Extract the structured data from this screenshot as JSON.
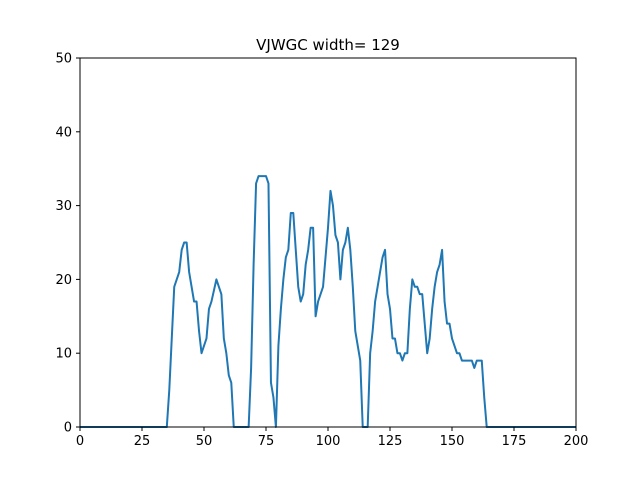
{
  "chart_data": {
    "type": "line",
    "title": "VJWGC width= 129",
    "xlabel": "",
    "ylabel": "",
    "xlim": [
      0,
      200
    ],
    "ylim": [
      0,
      50
    ],
    "xticks": [
      0,
      25,
      50,
      75,
      100,
      125,
      150,
      175,
      200
    ],
    "yticks": [
      0,
      10,
      20,
      30,
      40,
      50
    ],
    "grid": false,
    "color": "#1f77b4",
    "series": [
      {
        "x": [
          0,
          35,
          36,
          37,
          38,
          40,
          41,
          42,
          43,
          44,
          45,
          46,
          47,
          48,
          49,
          51,
          52,
          53,
          55,
          56,
          57,
          58,
          59,
          60,
          61,
          62,
          63,
          64,
          65,
          66,
          67,
          68,
          69,
          70,
          71,
          72,
          73,
          74,
          75,
          76,
          77,
          78,
          79,
          80,
          81,
          82,
          83,
          84,
          85,
          86,
          87,
          88,
          89,
          90,
          91,
          92,
          93,
          94,
          95,
          96,
          97,
          98,
          99,
          100,
          101,
          102,
          103,
          104,
          105,
          106,
          107,
          108,
          109,
          110,
          111,
          112,
          113,
          114,
          115,
          116,
          117,
          118,
          119,
          120,
          121,
          122,
          123,
          124,
          125,
          126,
          127,
          128,
          129,
          130,
          131,
          132,
          133,
          134,
          135,
          136,
          137,
          138,
          139,
          140,
          141,
          142,
          143,
          144,
          145,
          146,
          147,
          148,
          149,
          150,
          151,
          152,
          153,
          154,
          155,
          156,
          157,
          158,
          159,
          160,
          161,
          162,
          163,
          164,
          165,
          200
        ],
        "y": [
          0,
          0,
          5,
          12,
          19,
          21,
          24,
          25,
          25,
          21,
          19,
          17,
          17,
          13,
          10,
          12,
          16,
          17,
          20,
          19,
          18,
          12,
          10,
          7,
          6,
          0,
          0,
          0,
          0,
          0,
          0,
          0,
          8,
          22,
          33,
          34,
          34,
          34,
          34,
          33,
          6,
          4,
          0,
          11,
          16,
          20,
          23,
          24,
          29,
          29,
          24,
          19,
          17,
          18,
          22,
          24,
          27,
          27,
          15,
          17,
          18,
          19,
          23,
          27,
          32,
          30,
          26,
          25,
          20,
          24,
          25,
          27,
          24,
          19,
          13,
          11,
          9,
          0,
          0,
          0,
          10,
          13,
          17,
          19,
          21,
          23,
          24,
          18,
          16,
          12,
          12,
          10,
          10,
          9,
          10,
          10,
          16,
          20,
          19,
          19,
          18,
          18,
          14,
          10,
          12,
          16,
          19,
          21,
          22,
          24,
          17,
          14,
          14,
          12,
          11,
          10,
          10,
          9,
          9,
          9,
          9,
          9,
          8,
          9,
          9,
          9,
          4,
          0,
          0,
          0
        ]
      }
    ]
  }
}
